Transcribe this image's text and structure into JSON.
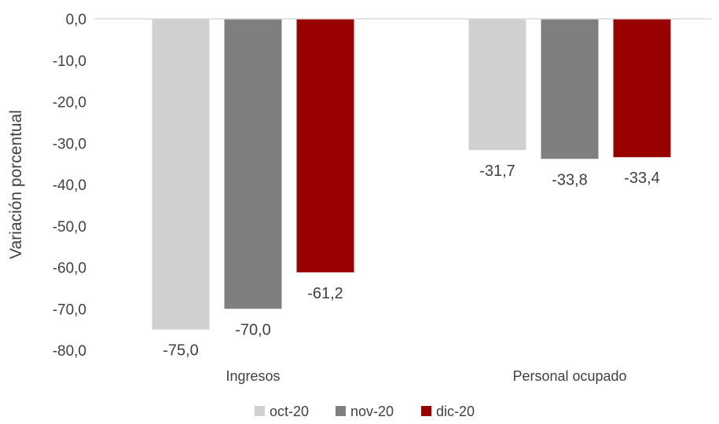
{
  "chart_data": {
    "type": "bar",
    "ylabel": "Variación porcentual",
    "ylim": [
      -80,
      0
    ],
    "yticks": [
      0,
      -10,
      -20,
      -30,
      -40,
      -50,
      -60,
      -70,
      -80
    ],
    "ytick_labels": [
      "0,0",
      "-10,0",
      "-20,0",
      "-30,0",
      "-40,0",
      "-50,0",
      "-60,0",
      "-70,0",
      "-80,0"
    ],
    "categories": [
      "Ingresos",
      "Personal ocupado"
    ],
    "series": [
      {
        "name": "oct-20",
        "values": [
          -75.0,
          -31.7
        ],
        "labels": [
          "-75,0",
          "-31,7"
        ],
        "color": "#d0d0d0"
      },
      {
        "name": "nov-20",
        "values": [
          -70.0,
          -33.8
        ],
        "labels": [
          "-70,0",
          "-33,8"
        ],
        "color": "#7f7f7f"
      },
      {
        "name": "dic-20",
        "values": [
          -61.2,
          -33.4
        ],
        "labels": [
          "-61,2",
          "-33,4"
        ],
        "color": "#990000"
      }
    ],
    "grid": false,
    "legend_position": "bottom"
  }
}
